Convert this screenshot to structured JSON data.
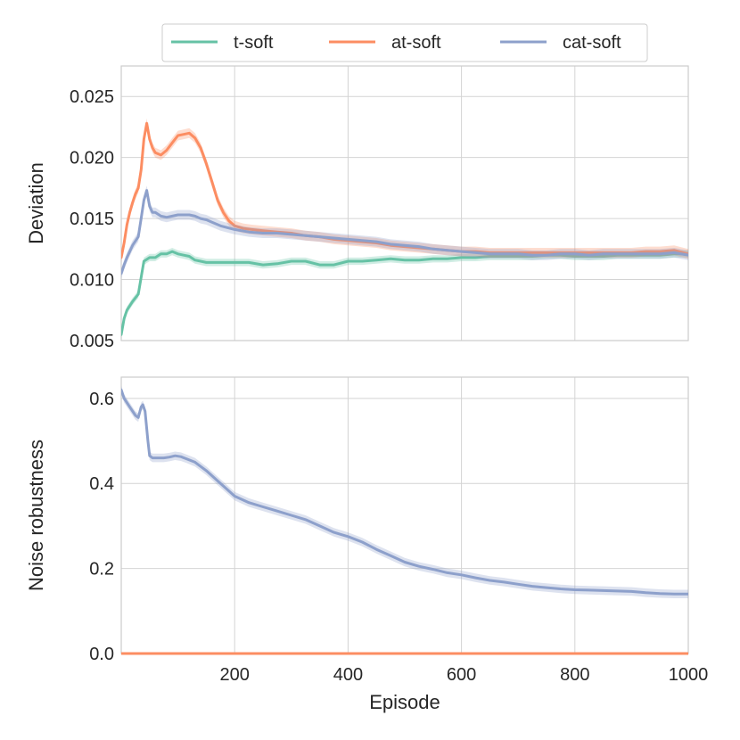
{
  "colors": {
    "t_soft": "#66c2a5",
    "at_soft": "#fc8d62",
    "cat_soft": "#8da0cb",
    "grid": "#d4d4d4",
    "frame": "#cccccc"
  },
  "chart_data": [
    {
      "type": "line",
      "ylabel": "Deviation",
      "xlim": [
        0,
        1000
      ],
      "ylim": [
        0.005,
        0.0275
      ],
      "yticks": [
        0.005,
        0.01,
        0.015,
        0.02,
        0.025
      ],
      "ytick_labels": [
        "0.005",
        "0.010",
        "0.015",
        "0.020",
        "0.025"
      ],
      "xticks": [
        200,
        400,
        600,
        800,
        1000
      ],
      "grid": true,
      "legend": {
        "placement": "top-center-outside",
        "entries": [
          "t-soft",
          "at-soft",
          "cat-soft"
        ]
      },
      "series": [
        {
          "name": "t-soft",
          "color": "#66c2a5",
          "band": 0.0003,
          "points": [
            [
              0,
              0.0055
            ],
            [
              5,
              0.0068
            ],
            [
              10,
              0.0075
            ],
            [
              20,
              0.0082
            ],
            [
              30,
              0.0088
            ],
            [
              40,
              0.0115
            ],
            [
              50,
              0.0118
            ],
            [
              60,
              0.0118
            ],
            [
              70,
              0.0121
            ],
            [
              80,
              0.0121
            ],
            [
              90,
              0.0123
            ],
            [
              100,
              0.0121
            ],
            [
              110,
              0.012
            ],
            [
              120,
              0.0119
            ],
            [
              130,
              0.0116
            ],
            [
              140,
              0.0115
            ],
            [
              150,
              0.0114
            ],
            [
              175,
              0.0114
            ],
            [
              200,
              0.0114
            ],
            [
              225,
              0.0114
            ],
            [
              250,
              0.0112
            ],
            [
              275,
              0.0113
            ],
            [
              300,
              0.0115
            ],
            [
              325,
              0.0115
            ],
            [
              350,
              0.0112
            ],
            [
              375,
              0.0112
            ],
            [
              400,
              0.0115
            ],
            [
              425,
              0.0115
            ],
            [
              450,
              0.0116
            ],
            [
              475,
              0.0117
            ],
            [
              500,
              0.0116
            ],
            [
              525,
              0.0116
            ],
            [
              550,
              0.0117
            ],
            [
              575,
              0.0117
            ],
            [
              600,
              0.0118
            ],
            [
              625,
              0.0118
            ],
            [
              650,
              0.0119
            ],
            [
              675,
              0.0119
            ],
            [
              700,
              0.0119
            ],
            [
              725,
              0.0119
            ],
            [
              750,
              0.012
            ],
            [
              775,
              0.012
            ],
            [
              800,
              0.0119
            ],
            [
              825,
              0.0119
            ],
            [
              850,
              0.0119
            ],
            [
              875,
              0.012
            ],
            [
              900,
              0.012
            ],
            [
              925,
              0.012
            ],
            [
              950,
              0.012
            ],
            [
              975,
              0.0121
            ],
            [
              1000,
              0.0121
            ]
          ]
        },
        {
          "name": "at-soft",
          "color": "#fc8d62",
          "band": 0.0004,
          "points": [
            [
              0,
              0.0118
            ],
            [
              5,
              0.013
            ],
            [
              10,
              0.0145
            ],
            [
              15,
              0.0155
            ],
            [
              20,
              0.0163
            ],
            [
              25,
              0.017
            ],
            [
              30,
              0.0175
            ],
            [
              35,
              0.019
            ],
            [
              40,
              0.0215
            ],
            [
              45,
              0.0228
            ],
            [
              50,
              0.0215
            ],
            [
              55,
              0.0208
            ],
            [
              60,
              0.0204
            ],
            [
              70,
              0.0202
            ],
            [
              80,
              0.0206
            ],
            [
              90,
              0.0212
            ],
            [
              100,
              0.0218
            ],
            [
              110,
              0.0219
            ],
            [
              120,
              0.022
            ],
            [
              130,
              0.0216
            ],
            [
              140,
              0.0208
            ],
            [
              150,
              0.0195
            ],
            [
              160,
              0.018
            ],
            [
              170,
              0.0165
            ],
            [
              180,
              0.0155
            ],
            [
              190,
              0.0148
            ],
            [
              200,
              0.0144
            ],
            [
              215,
              0.0142
            ],
            [
              230,
              0.0141
            ],
            [
              250,
              0.014
            ],
            [
              275,
              0.0139
            ],
            [
              300,
              0.0138
            ],
            [
              325,
              0.0136
            ],
            [
              350,
              0.0135
            ],
            [
              375,
              0.0133
            ],
            [
              400,
              0.0132
            ],
            [
              425,
              0.0131
            ],
            [
              450,
              0.013
            ],
            [
              475,
              0.0128
            ],
            [
              500,
              0.0127
            ],
            [
              525,
              0.0126
            ],
            [
              550,
              0.0125
            ],
            [
              575,
              0.0124
            ],
            [
              600,
              0.0123
            ],
            [
              625,
              0.0123
            ],
            [
              650,
              0.0122
            ],
            [
              675,
              0.0122
            ],
            [
              700,
              0.0122
            ],
            [
              725,
              0.0122
            ],
            [
              750,
              0.0122
            ],
            [
              775,
              0.0122
            ],
            [
              800,
              0.0122
            ],
            [
              825,
              0.0122
            ],
            [
              850,
              0.0122
            ],
            [
              875,
              0.0122
            ],
            [
              900,
              0.0122
            ],
            [
              925,
              0.0123
            ],
            [
              950,
              0.0123
            ],
            [
              975,
              0.0124
            ],
            [
              1000,
              0.0121
            ]
          ]
        },
        {
          "name": "cat-soft",
          "color": "#8da0cb",
          "band": 0.0004,
          "points": [
            [
              0,
              0.0105
            ],
            [
              5,
              0.0112
            ],
            [
              10,
              0.0118
            ],
            [
              20,
              0.0128
            ],
            [
              30,
              0.0135
            ],
            [
              35,
              0.015
            ],
            [
              40,
              0.0165
            ],
            [
              45,
              0.0173
            ],
            [
              50,
              0.016
            ],
            [
              55,
              0.0155
            ],
            [
              60,
              0.0155
            ],
            [
              70,
              0.0152
            ],
            [
              80,
              0.0151
            ],
            [
              90,
              0.0152
            ],
            [
              100,
              0.0153
            ],
            [
              110,
              0.0153
            ],
            [
              120,
              0.0153
            ],
            [
              130,
              0.0152
            ],
            [
              140,
              0.015
            ],
            [
              150,
              0.0149
            ],
            [
              160,
              0.0147
            ],
            [
              175,
              0.0144
            ],
            [
              200,
              0.0141
            ],
            [
              225,
              0.0139
            ],
            [
              250,
              0.0138
            ],
            [
              275,
              0.0138
            ],
            [
              300,
              0.0137
            ],
            [
              325,
              0.0136
            ],
            [
              350,
              0.0135
            ],
            [
              375,
              0.0134
            ],
            [
              400,
              0.0133
            ],
            [
              425,
              0.0132
            ],
            [
              450,
              0.0131
            ],
            [
              475,
              0.0129
            ],
            [
              500,
              0.0128
            ],
            [
              525,
              0.0127
            ],
            [
              550,
              0.0125
            ],
            [
              575,
              0.0124
            ],
            [
              600,
              0.0123
            ],
            [
              625,
              0.0122
            ],
            [
              650,
              0.0121
            ],
            [
              675,
              0.0121
            ],
            [
              700,
              0.0121
            ],
            [
              725,
              0.012
            ],
            [
              750,
              0.012
            ],
            [
              775,
              0.0121
            ],
            [
              800,
              0.0121
            ],
            [
              825,
              0.012
            ],
            [
              850,
              0.0121
            ],
            [
              875,
              0.0121
            ],
            [
              900,
              0.0121
            ],
            [
              925,
              0.0121
            ],
            [
              950,
              0.0121
            ],
            [
              975,
              0.0122
            ],
            [
              1000,
              0.012
            ]
          ]
        }
      ]
    },
    {
      "type": "line",
      "xlabel": "Episode",
      "ylabel": "Noise robustness",
      "xlim": [
        0,
        1000
      ],
      "ylim": [
        0.0,
        0.65
      ],
      "yticks": [
        0.0,
        0.2,
        0.4,
        0.6
      ],
      "ytick_labels": [
        "0.0",
        "0.2",
        "0.4",
        "0.6"
      ],
      "xticks": [
        200,
        400,
        600,
        800,
        1000
      ],
      "xtick_labels": [
        "200",
        "400",
        "600",
        "800",
        "1000"
      ],
      "grid": true,
      "series": [
        {
          "name": "t-soft",
          "color": "#66c2a5",
          "band": 0,
          "points": [
            [
              0,
              0.0
            ],
            [
              1000,
              0.0
            ]
          ]
        },
        {
          "name": "at-soft",
          "color": "#fc8d62",
          "band": 0,
          "points": [
            [
              0,
              0.0
            ],
            [
              1000,
              0.0
            ]
          ]
        },
        {
          "name": "cat-soft",
          "color": "#8da0cb",
          "band": 0.01,
          "points": [
            [
              0,
              0.62
            ],
            [
              5,
              0.6
            ],
            [
              15,
              0.58
            ],
            [
              25,
              0.56
            ],
            [
              30,
              0.555
            ],
            [
              35,
              0.58
            ],
            [
              38,
              0.585
            ],
            [
              42,
              0.57
            ],
            [
              47,
              0.5
            ],
            [
              50,
              0.465
            ],
            [
              55,
              0.46
            ],
            [
              65,
              0.46
            ],
            [
              75,
              0.46
            ],
            [
              85,
              0.462
            ],
            [
              95,
              0.465
            ],
            [
              105,
              0.463
            ],
            [
              115,
              0.458
            ],
            [
              130,
              0.45
            ],
            [
              150,
              0.43
            ],
            [
              175,
              0.4
            ],
            [
              200,
              0.37
            ],
            [
              225,
              0.355
            ],
            [
              250,
              0.345
            ],
            [
              275,
              0.335
            ],
            [
              300,
              0.325
            ],
            [
              325,
              0.315
            ],
            [
              350,
              0.3
            ],
            [
              375,
              0.285
            ],
            [
              400,
              0.275
            ],
            [
              425,
              0.262
            ],
            [
              450,
              0.245
            ],
            [
              475,
              0.23
            ],
            [
              500,
              0.215
            ],
            [
              525,
              0.205
            ],
            [
              550,
              0.198
            ],
            [
              575,
              0.19
            ],
            [
              600,
              0.185
            ],
            [
              625,
              0.178
            ],
            [
              650,
              0.172
            ],
            [
              675,
              0.168
            ],
            [
              700,
              0.163
            ],
            [
              725,
              0.158
            ],
            [
              750,
              0.155
            ],
            [
              775,
              0.152
            ],
            [
              800,
              0.15
            ],
            [
              825,
              0.149
            ],
            [
              850,
              0.148
            ],
            [
              875,
              0.147
            ],
            [
              900,
              0.146
            ],
            [
              925,
              0.143
            ],
            [
              950,
              0.141
            ],
            [
              975,
              0.14
            ],
            [
              1000,
              0.14
            ]
          ]
        }
      ]
    }
  ]
}
